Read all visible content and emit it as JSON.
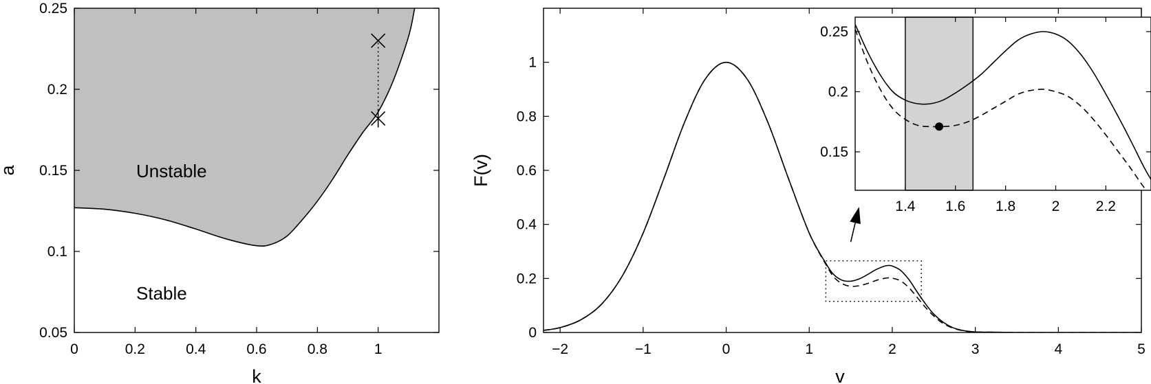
{
  "chart_data": [
    {
      "type": "area",
      "panel": "left",
      "xlabel": "k",
      "ylabel": "a",
      "xlim": [
        0,
        1.2
      ],
      "ylim": [
        0.05,
        0.25
      ],
      "xticks": [
        0,
        0.2,
        0.4,
        0.6,
        0.8,
        1
      ],
      "xtick_labels": [
        "0",
        "0.2",
        "0.4",
        "0.6",
        "0.8",
        "1"
      ],
      "yticks": [
        0.05,
        0.1,
        0.15,
        0.2,
        0.25
      ],
      "ytick_labels": [
        "0.05",
        "0.1",
        "0.15",
        "0.2",
        "0.25"
      ],
      "grid": false,
      "regions": [
        {
          "label": "Unstable",
          "fill": "#c0c0c0"
        },
        {
          "label": "Stable",
          "fill": "#ffffff"
        }
      ],
      "boundary": {
        "k": [
          0,
          0.1,
          0.2,
          0.3,
          0.4,
          0.5,
          0.6,
          0.65,
          0.7,
          0.75,
          0.8,
          0.85,
          0.9,
          0.95,
          1.0,
          1.05,
          1.1,
          1.12
        ],
        "a": [
          0.127,
          0.126,
          0.1235,
          0.1195,
          0.1138,
          0.1077,
          0.1035,
          0.1045,
          0.1095,
          0.1195,
          0.131,
          0.1445,
          0.1595,
          0.1735,
          0.186,
          0.2055,
          0.2325,
          0.25
        ]
      },
      "markers": [
        {
          "k": 1.0,
          "a": 0.23,
          "symbol": "x"
        },
        {
          "k": 1.0,
          "a": 0.182,
          "symbol": "*"
        }
      ],
      "dotted_segment": {
        "k": 1.0,
        "a": [
          0.182,
          0.23
        ]
      }
    },
    {
      "type": "line",
      "panel": "right",
      "xlabel": "v",
      "ylabel": "F(v)",
      "xlim": [
        -2.2,
        5
      ],
      "ylim": [
        0,
        1.2
      ],
      "xticks": [
        -2,
        -1,
        0,
        1,
        2,
        3,
        4,
        5
      ],
      "xtick_labels": [
        "−2",
        "−1",
        "0",
        "1",
        "2",
        "3",
        "4",
        "5"
      ],
      "yticks": [
        0,
        0.2,
        0.4,
        0.6,
        0.8,
        1
      ],
      "ytick_labels": [
        "0",
        "0.2",
        "0.4",
        "0.6",
        "0.8",
        "1"
      ],
      "grid": false,
      "series": [
        {
          "style": "solid",
          "x": [
            -2.2,
            -2.0,
            -1.75,
            -1.5,
            -1.25,
            -1.0,
            -0.75,
            -0.5,
            -0.25,
            0.0,
            0.25,
            0.5,
            0.75,
            1.0,
            1.2,
            1.3,
            1.4,
            1.5,
            1.6,
            1.7,
            1.8,
            1.9,
            1.95,
            2.0,
            2.1,
            2.2,
            2.3,
            2.4,
            2.5,
            2.6,
            2.7,
            2.8,
            2.9,
            3.0,
            3.2,
            3.5,
            4.0,
            5.0
          ],
          "y": [
            0.008,
            0.018,
            0.047,
            0.105,
            0.21,
            0.368,
            0.57,
            0.779,
            0.939,
            1.0,
            0.939,
            0.779,
            0.57,
            0.368,
            0.256,
            0.213,
            0.193,
            0.19,
            0.198,
            0.214,
            0.232,
            0.245,
            0.248,
            0.246,
            0.23,
            0.196,
            0.15,
            0.106,
            0.068,
            0.041,
            0.022,
            0.011,
            0.005,
            0.002,
            0.001,
            0.0,
            0.0,
            0.0
          ]
        },
        {
          "style": "dashed",
          "x": [
            -2.2,
            -2.0,
            -1.75,
            -1.5,
            -1.25,
            -1.0,
            -0.75,
            -0.5,
            -0.25,
            0.0,
            0.25,
            0.5,
            0.75,
            1.0,
            1.2,
            1.3,
            1.4,
            1.5,
            1.6,
            1.7,
            1.8,
            1.9,
            1.95,
            2.0,
            2.1,
            2.2,
            2.3,
            2.4,
            2.5,
            2.6,
            2.7,
            2.8,
            2.9,
            3.0,
            3.2,
            3.5,
            4.0,
            5.0
          ],
          "y": [
            0.008,
            0.018,
            0.047,
            0.105,
            0.21,
            0.368,
            0.57,
            0.779,
            0.939,
            1.0,
            0.939,
            0.779,
            0.57,
            0.368,
            0.252,
            0.204,
            0.18,
            0.171,
            0.173,
            0.181,
            0.192,
            0.2,
            0.202,
            0.201,
            0.191,
            0.166,
            0.13,
            0.093,
            0.061,
            0.036,
            0.02,
            0.01,
            0.004,
            0.002,
            0.001,
            0.0,
            0.0,
            0.0
          ]
        }
      ],
      "zoom_box": {
        "x": [
          1.2,
          2.35
        ],
        "y": [
          0.115,
          0.265
        ]
      },
      "arrow": {
        "from": [
          1.5,
          0.335
        ],
        "to": [
          1.6,
          0.465
        ]
      }
    },
    {
      "type": "line",
      "panel": "inset",
      "xlim": [
        1.2,
        2.38
      ],
      "ylim": [
        0.118,
        0.262
      ],
      "xticks": [
        1.4,
        1.6,
        1.8,
        2.0,
        2.2
      ],
      "xtick_labels": [
        "1.4",
        "1.6",
        "1.8",
        "2",
        "2.2"
      ],
      "yticks": [
        0.15,
        0.2,
        0.25
      ],
      "ytick_labels": [
        "0.15",
        "0.2",
        "0.25"
      ],
      "grid": false,
      "highlight_band": {
        "x": [
          1.4,
          1.67
        ],
        "fill": "#d3d3d3"
      },
      "series": [
        {
          "style": "solid",
          "x": [
            1.2,
            1.25,
            1.3,
            1.35,
            1.4,
            1.45,
            1.5,
            1.55,
            1.6,
            1.65,
            1.7,
            1.75,
            1.8,
            1.85,
            1.9,
            1.95,
            2.0,
            2.05,
            2.1,
            2.15,
            2.2,
            2.25,
            2.3,
            2.35,
            2.38
          ],
          "y": [
            0.256,
            0.233,
            0.214,
            0.2,
            0.193,
            0.19,
            0.19,
            0.193,
            0.199,
            0.206,
            0.214,
            0.224,
            0.234,
            0.243,
            0.248,
            0.25,
            0.248,
            0.242,
            0.231,
            0.216,
            0.198,
            0.179,
            0.159,
            0.138,
            0.127
          ]
        },
        {
          "style": "dashed",
          "x": [
            1.2,
            1.25,
            1.3,
            1.35,
            1.4,
            1.45,
            1.5,
            1.55,
            1.6,
            1.65,
            1.7,
            1.75,
            1.8,
            1.85,
            1.9,
            1.95,
            2.0,
            2.05,
            2.1,
            2.15,
            2.2,
            2.25,
            2.3,
            2.35,
            2.38
          ],
          "y": [
            0.252,
            0.224,
            0.202,
            0.186,
            0.177,
            0.172,
            0.171,
            0.171,
            0.172,
            0.175,
            0.18,
            0.186,
            0.192,
            0.198,
            0.201,
            0.202,
            0.2,
            0.196,
            0.188,
            0.177,
            0.164,
            0.15,
            0.136,
            0.121,
            0.114
          ]
        }
      ],
      "markers": [
        {
          "x": 1.535,
          "y": 0.171,
          "symbol": "filled-circle"
        }
      ]
    }
  ]
}
